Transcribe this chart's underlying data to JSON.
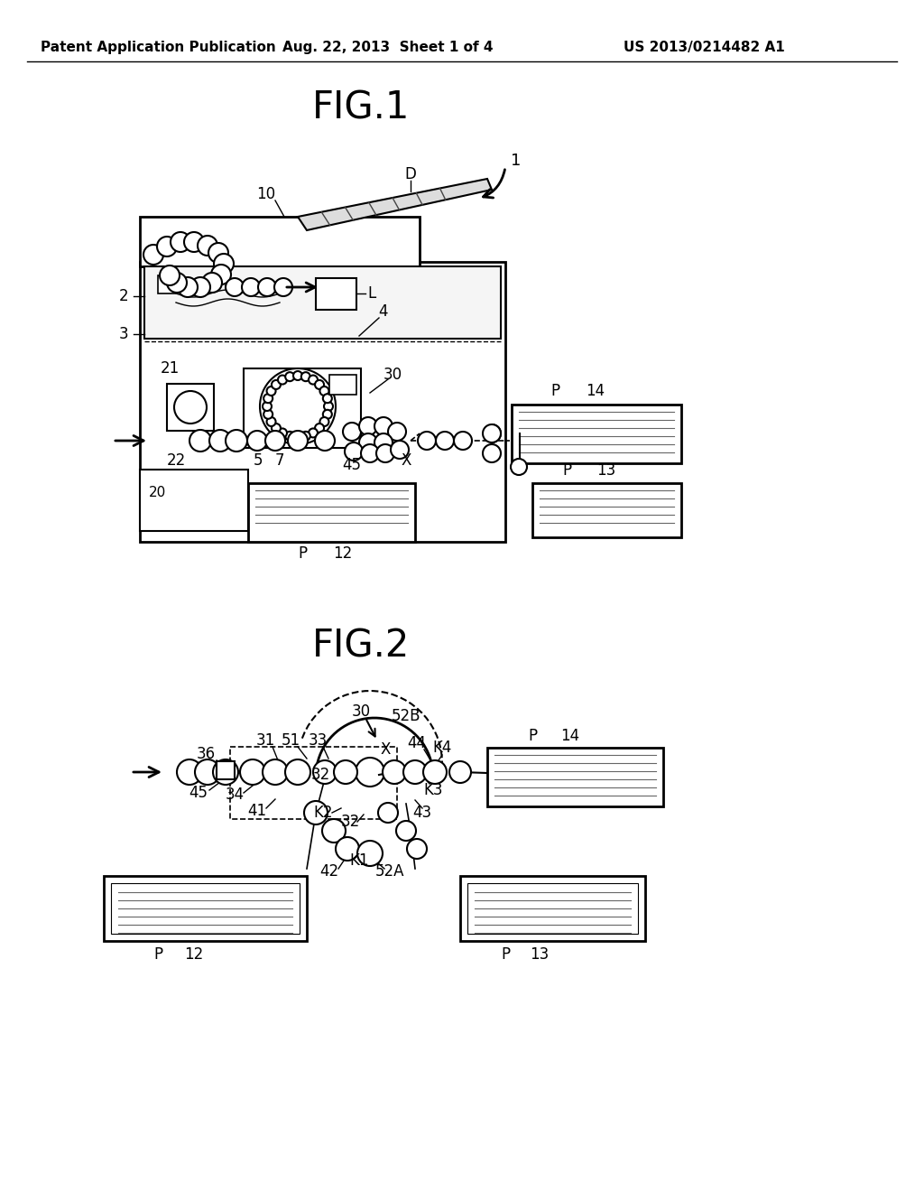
{
  "background_color": "#ffffff",
  "header_left": "Patent Application Publication",
  "header_center": "Aug. 22, 2013  Sheet 1 of 4",
  "header_right": "US 2013/0214482 A1",
  "fig1_title": "FIG.1",
  "fig2_title": "FIG.2"
}
